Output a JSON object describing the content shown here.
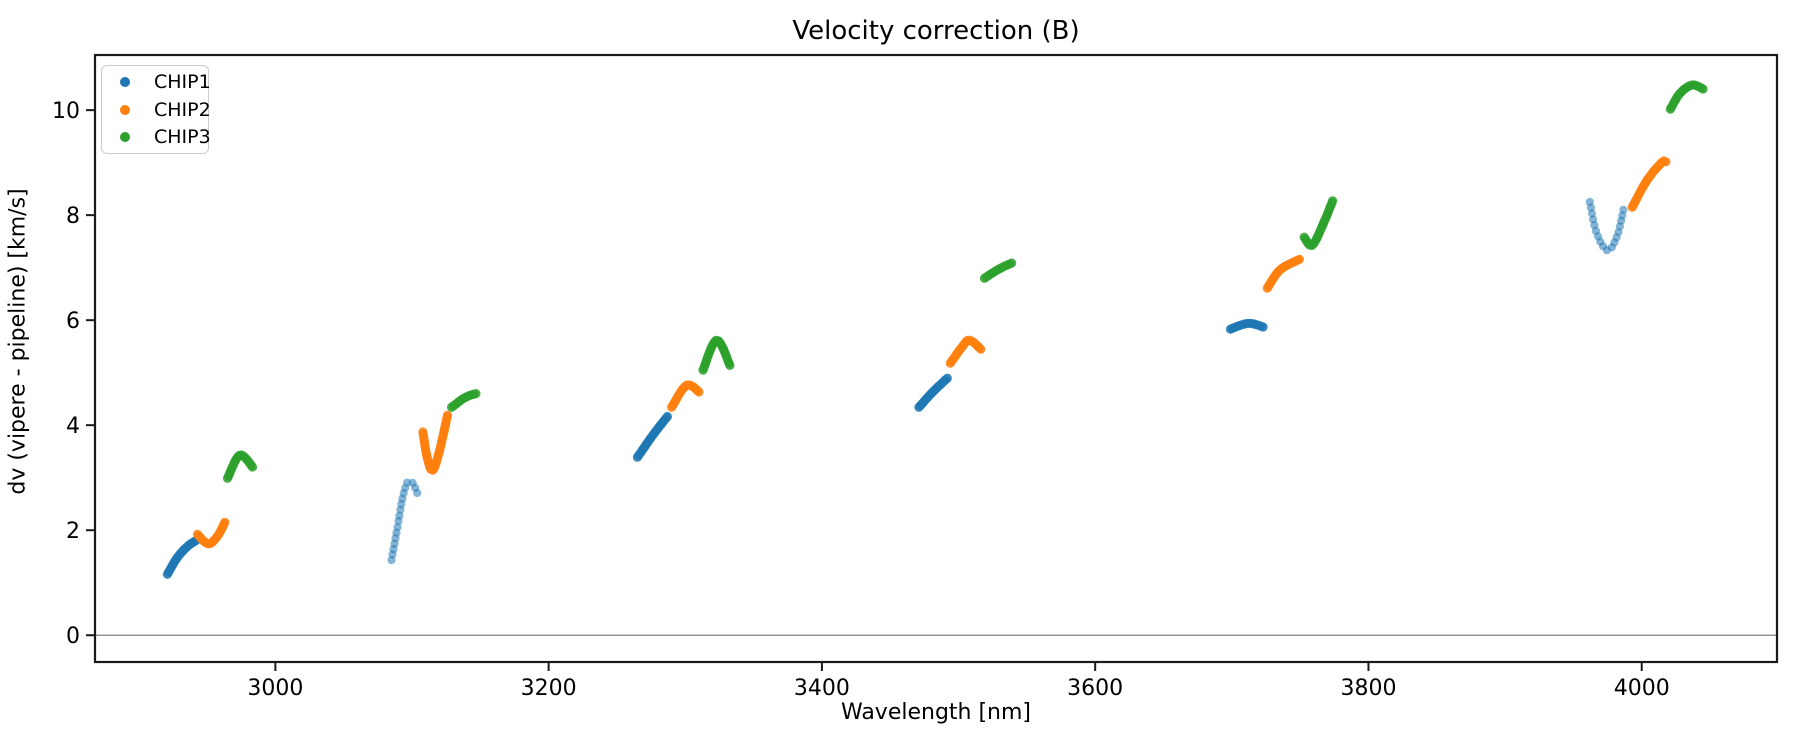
{
  "chart_data": {
    "type": "scatter",
    "title": "Velocity correction (B)",
    "xlabel": "Wavelength [nm]",
    "ylabel": "dv (vipere - pipeline) [km/s]",
    "legend_position": "upper left",
    "grid": false,
    "background_color": "#ffffff",
    "axes": {
      "xlim": [
        2868,
        4099
      ],
      "ylim": [
        -0.51,
        11.05
      ],
      "xticks": [
        3000,
        3200,
        3400,
        3600,
        3800,
        4000
      ],
      "yticks": [
        0,
        2,
        4,
        6,
        8,
        10
      ],
      "zero_line_y": 0,
      "zero_line_color": "#808080",
      "spine_color": "#1a1a1a",
      "tick_color": "#1a1a1a"
    },
    "series": [
      {
        "name": "CHIP1",
        "color": "#1f77b4",
        "segments": [
          {
            "style": "dense",
            "points": [
              [
                2921,
                1.16
              ],
              [
                2928,
                1.47
              ],
              [
                2936,
                1.7
              ],
              [
                2943,
                1.82
              ]
            ]
          },
          {
            "style": "dots",
            "points": [
              [
                3085,
                1.43
              ],
              [
                3089,
                2.0
              ],
              [
                3093,
                2.6
              ],
              [
                3097,
                2.93
              ],
              [
                3101,
                2.88
              ],
              [
                3105,
                2.62
              ]
            ]
          },
          {
            "style": "dense",
            "points": [
              [
                3265,
                3.39
              ],
              [
                3276,
                3.8
              ],
              [
                3287,
                4.17
              ]
            ]
          },
          {
            "style": "dense",
            "points": [
              [
                3471,
                4.34
              ],
              [
                3481,
                4.63
              ],
              [
                3492,
                4.9
              ]
            ]
          },
          {
            "style": "dense",
            "points": [
              [
                3699,
                5.83
              ],
              [
                3712,
                5.94
              ],
              [
                3723,
                5.87
              ]
            ]
          },
          {
            "style": "dots",
            "points": [
              [
                3962,
                8.25
              ],
              [
                3967,
                7.66
              ],
              [
                3975,
                7.33
              ],
              [
                3982,
                7.6
              ],
              [
                3987,
                8.15
              ]
            ]
          }
        ]
      },
      {
        "name": "CHIP2",
        "color": "#ff7f0e",
        "segments": [
          {
            "style": "dense",
            "points": [
              [
                2943,
                1.92
              ],
              [
                2951,
                1.74
              ],
              [
                2958,
                1.9
              ],
              [
                2963,
                2.15
              ]
            ]
          },
          {
            "style": "dense",
            "points": [
              [
                3108,
                3.87
              ],
              [
                3111,
                3.4
              ],
              [
                3115,
                3.14
              ],
              [
                3120,
                3.5
              ],
              [
                3126,
                4.19
              ]
            ]
          },
          {
            "style": "dense",
            "points": [
              [
                3290,
                4.34
              ],
              [
                3301,
                4.76
              ],
              [
                3311,
                4.61
              ]
            ]
          },
          {
            "style": "dense",
            "points": [
              [
                3494,
                5.18
              ],
              [
                3502,
                5.47
              ],
              [
                3508,
                5.62
              ],
              [
                3517,
                5.43
              ]
            ]
          },
          {
            "style": "dense",
            "points": [
              [
                3726,
                6.61
              ],
              [
                3735,
                6.95
              ],
              [
                3748,
                7.14
              ],
              [
                3751,
                7.16
              ]
            ]
          },
          {
            "style": "dense",
            "points": [
              [
                3993,
                8.15
              ],
              [
                4004,
                8.67
              ],
              [
                4015,
                9.01
              ],
              [
                4018,
                9.01
              ]
            ]
          }
        ]
      },
      {
        "name": "CHIP3",
        "color": "#2ca02c",
        "segments": [
          {
            "style": "dense",
            "points": [
              [
                2965,
                2.99
              ],
              [
                2974,
                3.43
              ],
              [
                2984,
                3.18
              ]
            ]
          },
          {
            "style": "dense",
            "points": [
              [
                3129,
                4.34
              ],
              [
                3139,
                4.53
              ],
              [
                3148,
                4.61
              ]
            ]
          },
          {
            "style": "dense",
            "points": [
              [
                3313,
                5.05
              ],
              [
                3323,
                5.62
              ],
              [
                3333,
                5.12
              ]
            ]
          },
          {
            "style": "dense",
            "points": [
              [
                3519,
                6.8
              ],
              [
                3530,
                6.98
              ],
              [
                3540,
                7.1
              ]
            ]
          },
          {
            "style": "dense",
            "points": [
              [
                3753,
                7.58
              ],
              [
                3759,
                7.43
              ],
              [
                3768,
                7.9
              ],
              [
                3774,
                8.29
              ]
            ]
          },
          {
            "style": "dense",
            "points": [
              [
                4021,
                10.02
              ],
              [
                4028,
                10.32
              ],
              [
                4037,
                10.48
              ],
              [
                4045,
                10.4
              ]
            ]
          }
        ]
      }
    ]
  }
}
